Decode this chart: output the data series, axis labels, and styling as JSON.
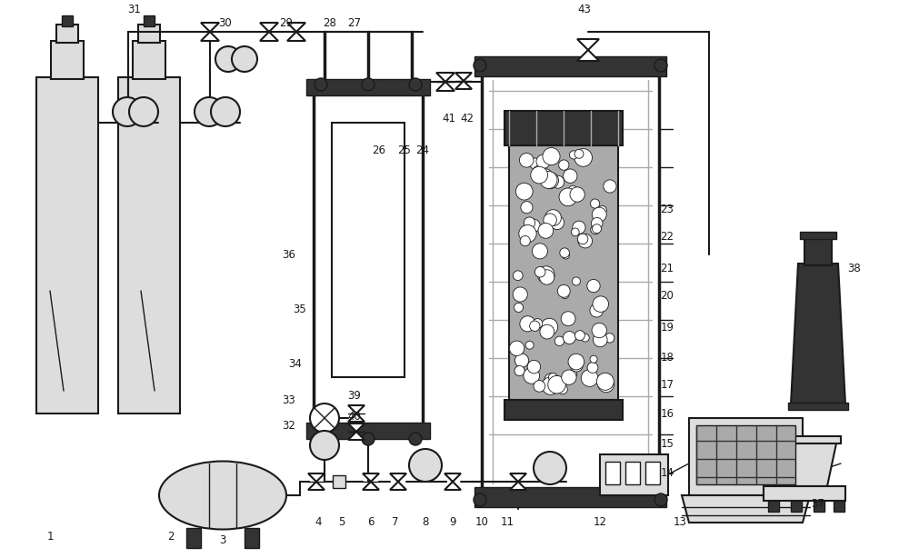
{
  "bg_color": "#ffffff",
  "line_color": "#1a1a1a",
  "dark_gray": "#333333",
  "mid_gray": "#666666",
  "light_gray": "#aaaaaa",
  "very_light_gray": "#dddddd",
  "figsize": [
    10.0,
    6.14
  ],
  "dpi": 100
}
